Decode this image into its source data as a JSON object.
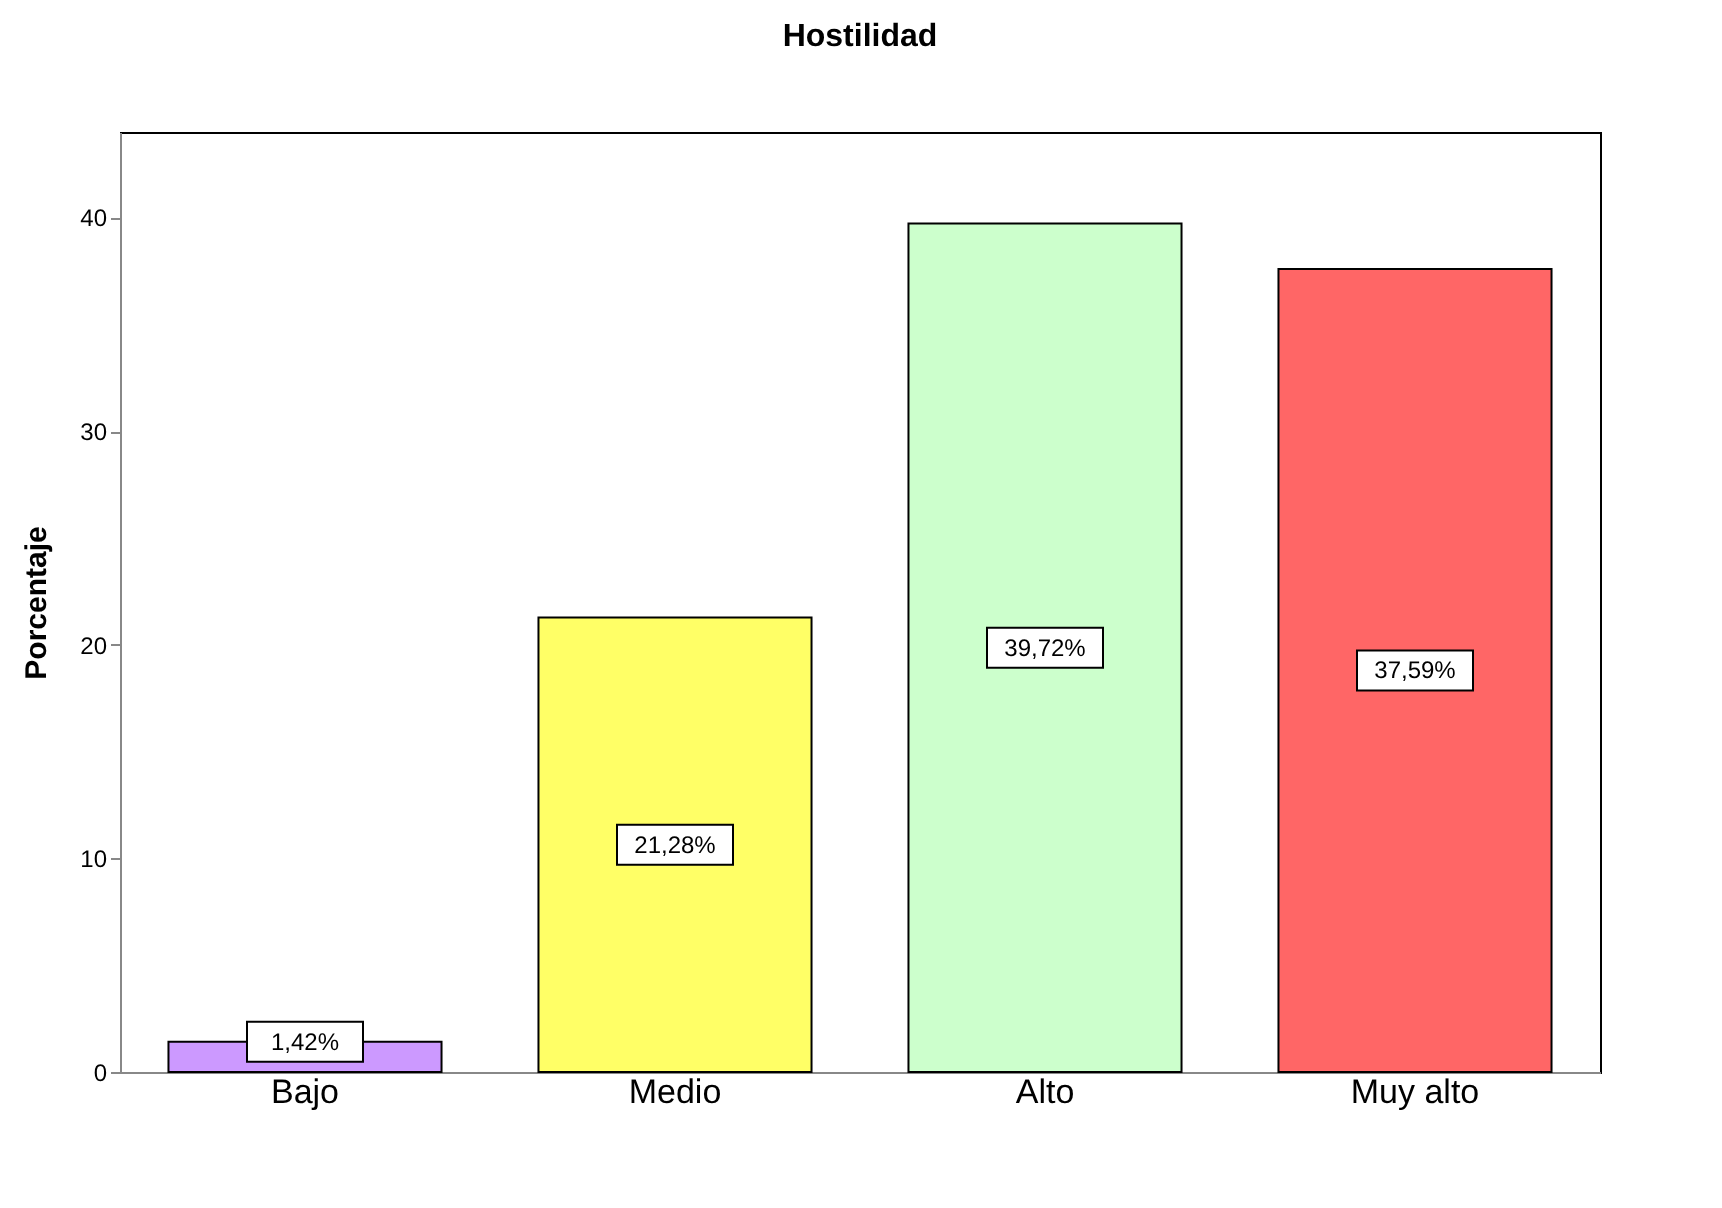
{
  "chart_data": {
    "type": "bar",
    "title": "Hostilidad",
    "ylabel": "Porcentaje",
    "categories": [
      "Bajo",
      "Medio",
      "Alto",
      "Muy alto"
    ],
    "values": [
      1.42,
      21.28,
      39.72,
      37.59
    ],
    "colors": [
      "#cc99ff",
      "#ffff66",
      "#ccffcc",
      "#ff6666"
    ],
    "value_labels": [
      "1,42%",
      "21,28%",
      "39,72%",
      "37,59%"
    ],
    "ylim": [
      0,
      44
    ],
    "yticks": [
      0,
      10,
      20,
      30,
      40
    ],
    "grid": false
  }
}
